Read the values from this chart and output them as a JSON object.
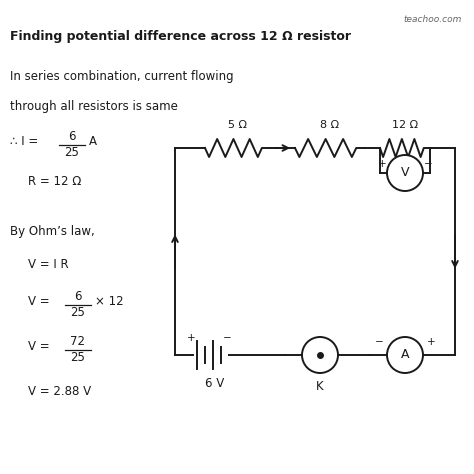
{
  "title": "Finding potential difference across 12 Ω resistor",
  "line1": "In series combination, current flowing",
  "line2": "through all resistors is same",
  "eq2": "R = 12 Ω",
  "eq3": "By Ohm’s law,",
  "eq4": "V = I R",
  "eq7": "V = 2.88 V",
  "watermark": "teachoo.com",
  "res1_label": "5 Ω",
  "res2_label": "8 Ω",
  "res3_label": "12 Ω",
  "battery_label": "6 V",
  "key_label": "K",
  "bg_color": "#ffffff",
  "text_color": "#1a1a1a",
  "circuit_color": "#1a1a1a"
}
